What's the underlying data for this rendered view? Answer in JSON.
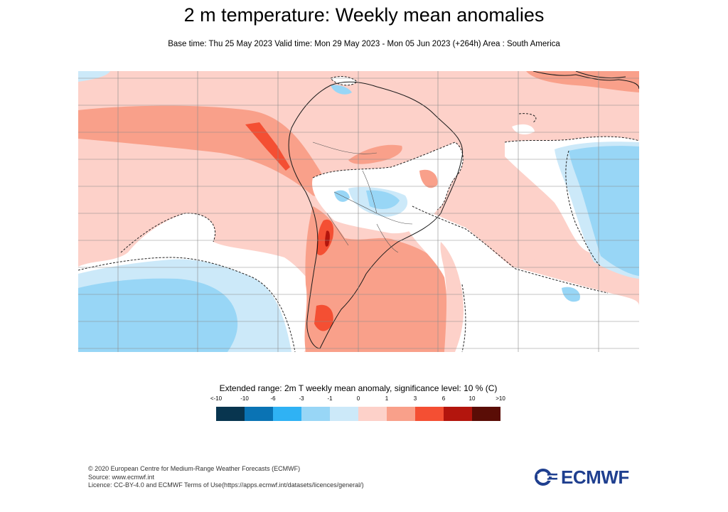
{
  "title": "2 m temperature: Weekly mean anomalies",
  "subtitle": "Base time: Thu 25 May 2023 Valid time: Mon 29 May 2023 - Mon 05 Jun 2023 (+264h) Area : South America",
  "map": {
    "area": "South America",
    "background_color": "#fdd1c9",
    "dashed_contour": "significance boundary"
  },
  "legend": {
    "title": "Extended range: 2m T weekly mean anomaly, significance level: 10 % (C)",
    "tick_labels": [
      "<-10",
      "-10",
      "-6",
      "-3",
      "-1",
      "0",
      "1",
      "3",
      "6",
      "10",
      ">10"
    ],
    "colors": [
      "#08354f",
      "#0a73b4",
      "#2fb2f4",
      "#98d6f6",
      "#cce9f9",
      "#fdd1c9",
      "#f9a08a",
      "#f44f33",
      "#b3150d",
      "#5a0d06"
    ]
  },
  "footer": {
    "lines": [
      "© 2020 European Centre for Medium-Range Weather Forecasts (ECMWF)",
      "Source: www.ecmwf.int",
      "Licence: CC-BY-4.0 and ECMWF Terms of Use(https://apps.ecmwf.int/datasets/licences/general/)"
    ]
  },
  "logo": {
    "text": "ECMWF",
    "color": "#1f3f8f"
  }
}
